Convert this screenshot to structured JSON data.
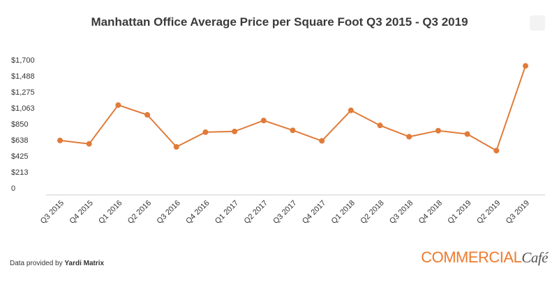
{
  "title": "Manhattan Office Average Price per Square Foot Q3 2015 - Q3 2019",
  "footer": {
    "prefix": "Data provided by ",
    "source": "Yardi Matrix"
  },
  "brand": {
    "part1": "COMMERCIAL",
    "part2": "Café"
  },
  "colors": {
    "line": "#e07b39",
    "grid": "#dddddd",
    "axis": "#999999",
    "text": "#333333"
  },
  "chart_data": {
    "type": "line",
    "title": "Manhattan Office Average Price per Square Foot Q3 2015 - Q3 2019",
    "categories": [
      "Q3 2015",
      "Q4 2015",
      "Q1 2016",
      "Q2 2016",
      "Q3 2016",
      "Q4 2016",
      "Q1 2017",
      "Q2 2017",
      "Q3 2017",
      "Q4 2017",
      "Q1 2018",
      "Q2 2018",
      "Q3 2018",
      "Q4 2018",
      "Q1 2019",
      "Q2 2019",
      "Q3 2019"
    ],
    "series": [
      {
        "values": [
          630,
          585,
          1100,
          970,
          545,
          740,
          750,
          895,
          765,
          625,
          1030,
          830,
          680,
          760,
          715,
          495,
          1620
        ]
      }
    ],
    "yticks": [
      0,
      213,
      425,
      638,
      850,
      1063,
      1275,
      1488,
      1700
    ],
    "ytick_labels": [
      "0",
      "$213",
      "$425",
      "$638",
      "$850",
      "$1,063",
      "$1,275",
      "$1,488",
      "$1,700"
    ],
    "ylim": [
      0,
      1700
    ],
    "xlabel": "",
    "ylabel": "",
    "grid": false,
    "legend": "none"
  }
}
